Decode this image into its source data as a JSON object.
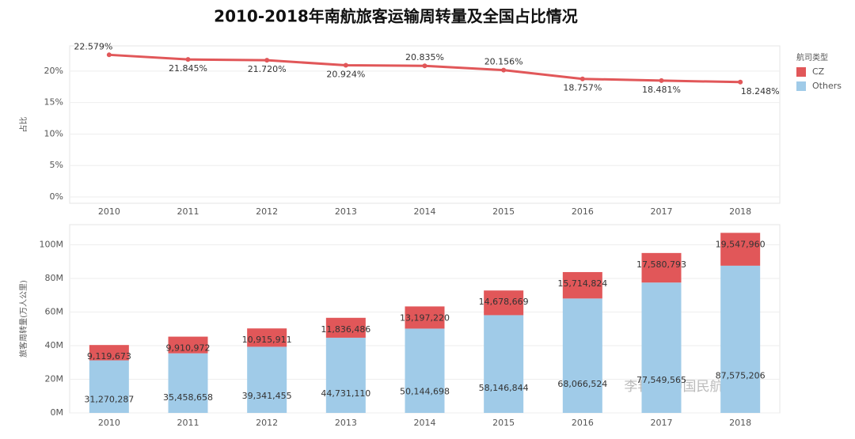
{
  "title": "2010-2018年南航旅客运输周转量及全国占比情况",
  "watermark": "李艳伟-中国民航大学",
  "legend": {
    "title": "航司类型",
    "corner": "top-right"
  },
  "chart_data": [
    {
      "type": "line",
      "y_label": "占比",
      "categories": [
        "2010",
        "2011",
        "2012",
        "2013",
        "2014",
        "2015",
        "2016",
        "2017",
        "2018"
      ],
      "series": [
        {
          "name": "CZ",
          "color": "#e15759",
          "values": [
            22.579,
            21.845,
            21.72,
            20.924,
            20.835,
            20.156,
            18.757,
            18.481,
            18.248
          ],
          "value_labels": [
            "22.579%",
            "21.845%",
            "21.720%",
            "20.924%",
            "20.835%",
            "20.156%",
            "18.757%",
            "18.481%",
            "18.248%"
          ]
        }
      ],
      "ylim": [
        -1,
        24
      ],
      "yticks": [
        {
          "value": 0,
          "label": "0%"
        },
        {
          "value": 5,
          "label": "5%"
        },
        {
          "value": 10,
          "label": "10%"
        },
        {
          "value": 15,
          "label": "15%"
        },
        {
          "value": 20,
          "label": "20%"
        }
      ],
      "grid": true
    },
    {
      "type": "stacked_bar",
      "y_label": "旅客周转量(万人公里)",
      "categories": [
        "2010",
        "2011",
        "2012",
        "2013",
        "2014",
        "2015",
        "2016",
        "2017",
        "2018"
      ],
      "series": [
        {
          "name": "Others",
          "color": "#a0cbe8",
          "values": [
            31270287,
            35458658,
            39341455,
            44731110,
            50144698,
            58146844,
            68066524,
            77549565,
            87575206
          ],
          "value_labels": [
            "31,270,287",
            "35,458,658",
            "39,341,455",
            "44,731,110",
            "50,144,698",
            "58,146,844",
            "68,066,524",
            "77,549,565",
            "87,575,206"
          ]
        },
        {
          "name": "CZ",
          "color": "#e15759",
          "values": [
            9119673,
            9910972,
            10915911,
            11836486,
            13197220,
            14678669,
            15714824,
            17580793,
            19547960
          ],
          "value_labels": [
            "9,119,673",
            "9,910,972",
            "10,915,911",
            "11,836,486",
            "13,197,220",
            "14,678,669",
            "15,714,824",
            "17,580,793",
            "19,547,960"
          ]
        }
      ],
      "ylim": [
        0,
        112000000
      ],
      "yticks": [
        {
          "value": 0,
          "label": "0M"
        },
        {
          "value": 20000000,
          "label": "20M"
        },
        {
          "value": 40000000,
          "label": "40M"
        },
        {
          "value": 60000000,
          "label": "60M"
        },
        {
          "value": 80000000,
          "label": "80M"
        },
        {
          "value": 100000000,
          "label": "100M"
        }
      ],
      "grid": true
    }
  ]
}
